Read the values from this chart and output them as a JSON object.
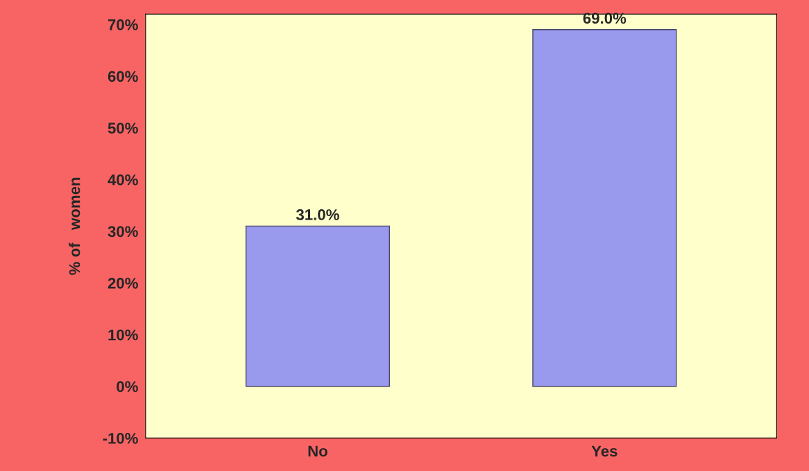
{
  "chart_data": {
    "type": "bar",
    "ylabel": "% of   women",
    "categories": [
      "No",
      "Yes"
    ],
    "values": [
      31.0,
      69.0
    ],
    "value_labels": [
      "31.0%",
      "69.0%"
    ],
    "color": "#9999ee",
    "ylim": [
      -10,
      72
    ],
    "yticks": [
      {
        "value": -10,
        "label": "-10%"
      },
      {
        "value": 0,
        "label": "0%"
      },
      {
        "value": 10,
        "label": "10%"
      },
      {
        "value": 20,
        "label": "20%"
      },
      {
        "value": 30,
        "label": "30%"
      },
      {
        "value": 40,
        "label": "40%"
      },
      {
        "value": 50,
        "label": "50%"
      },
      {
        "value": 60,
        "label": "60%"
      },
      {
        "value": 70,
        "label": "70%"
      }
    ],
    "grid": false
  }
}
